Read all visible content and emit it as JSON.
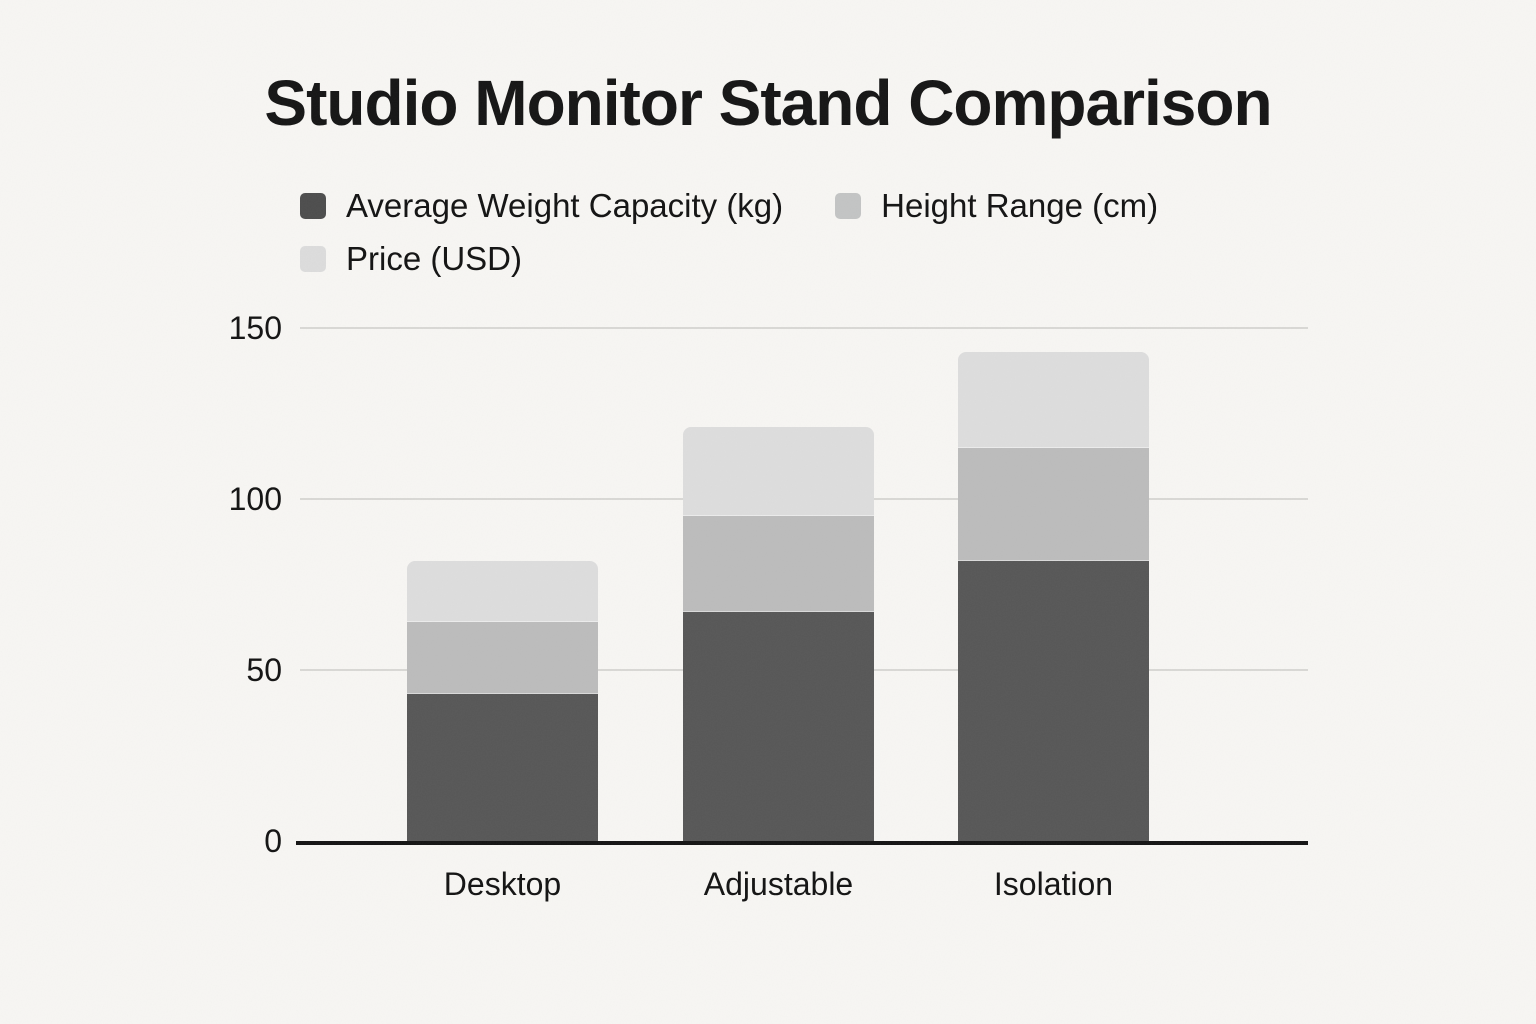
{
  "title": "Studio Monitor Stand Comparison",
  "colors": {
    "background": "#f7f6f3",
    "gridline": "#d9d8d5",
    "axis_line": "#141414",
    "text": "#131313",
    "series_dark": "#575757",
    "series_medium": "#bcbcbc",
    "series_light": "#dddddd"
  },
  "legend": {
    "items": [
      {
        "label": "Average Weight Capacity (kg)",
        "color": "#4d4d4d"
      },
      {
        "label": "Height Range (cm)",
        "color": "#c3c4c4"
      },
      {
        "label": "Price (USD)",
        "color": "#dcdcdc"
      }
    ]
  },
  "chart_data": {
    "type": "bar",
    "stacked": true,
    "title": "Studio Monitor Stand Comparison",
    "categories": [
      "Desktop",
      "Adjustable",
      "Isolation"
    ],
    "series": [
      {
        "name": "Average Weight Capacity (kg)",
        "color": "#575757",
        "values": [
          43,
          67,
          82
        ]
      },
      {
        "name": "Height Range (cm)",
        "color": "#bcbcbc",
        "values": [
          21,
          28,
          33
        ]
      },
      {
        "name": "Price (USD)",
        "color": "#dddddd",
        "values": [
          18,
          26,
          28
        ]
      }
    ],
    "stack_totals": [
      82,
      121,
      143
    ],
    "xlabel": "",
    "ylabel": "",
    "ylim": [
      0,
      150
    ],
    "yticks": [
      0,
      50,
      100,
      150
    ],
    "grid": true,
    "legend_position": "top-left"
  }
}
